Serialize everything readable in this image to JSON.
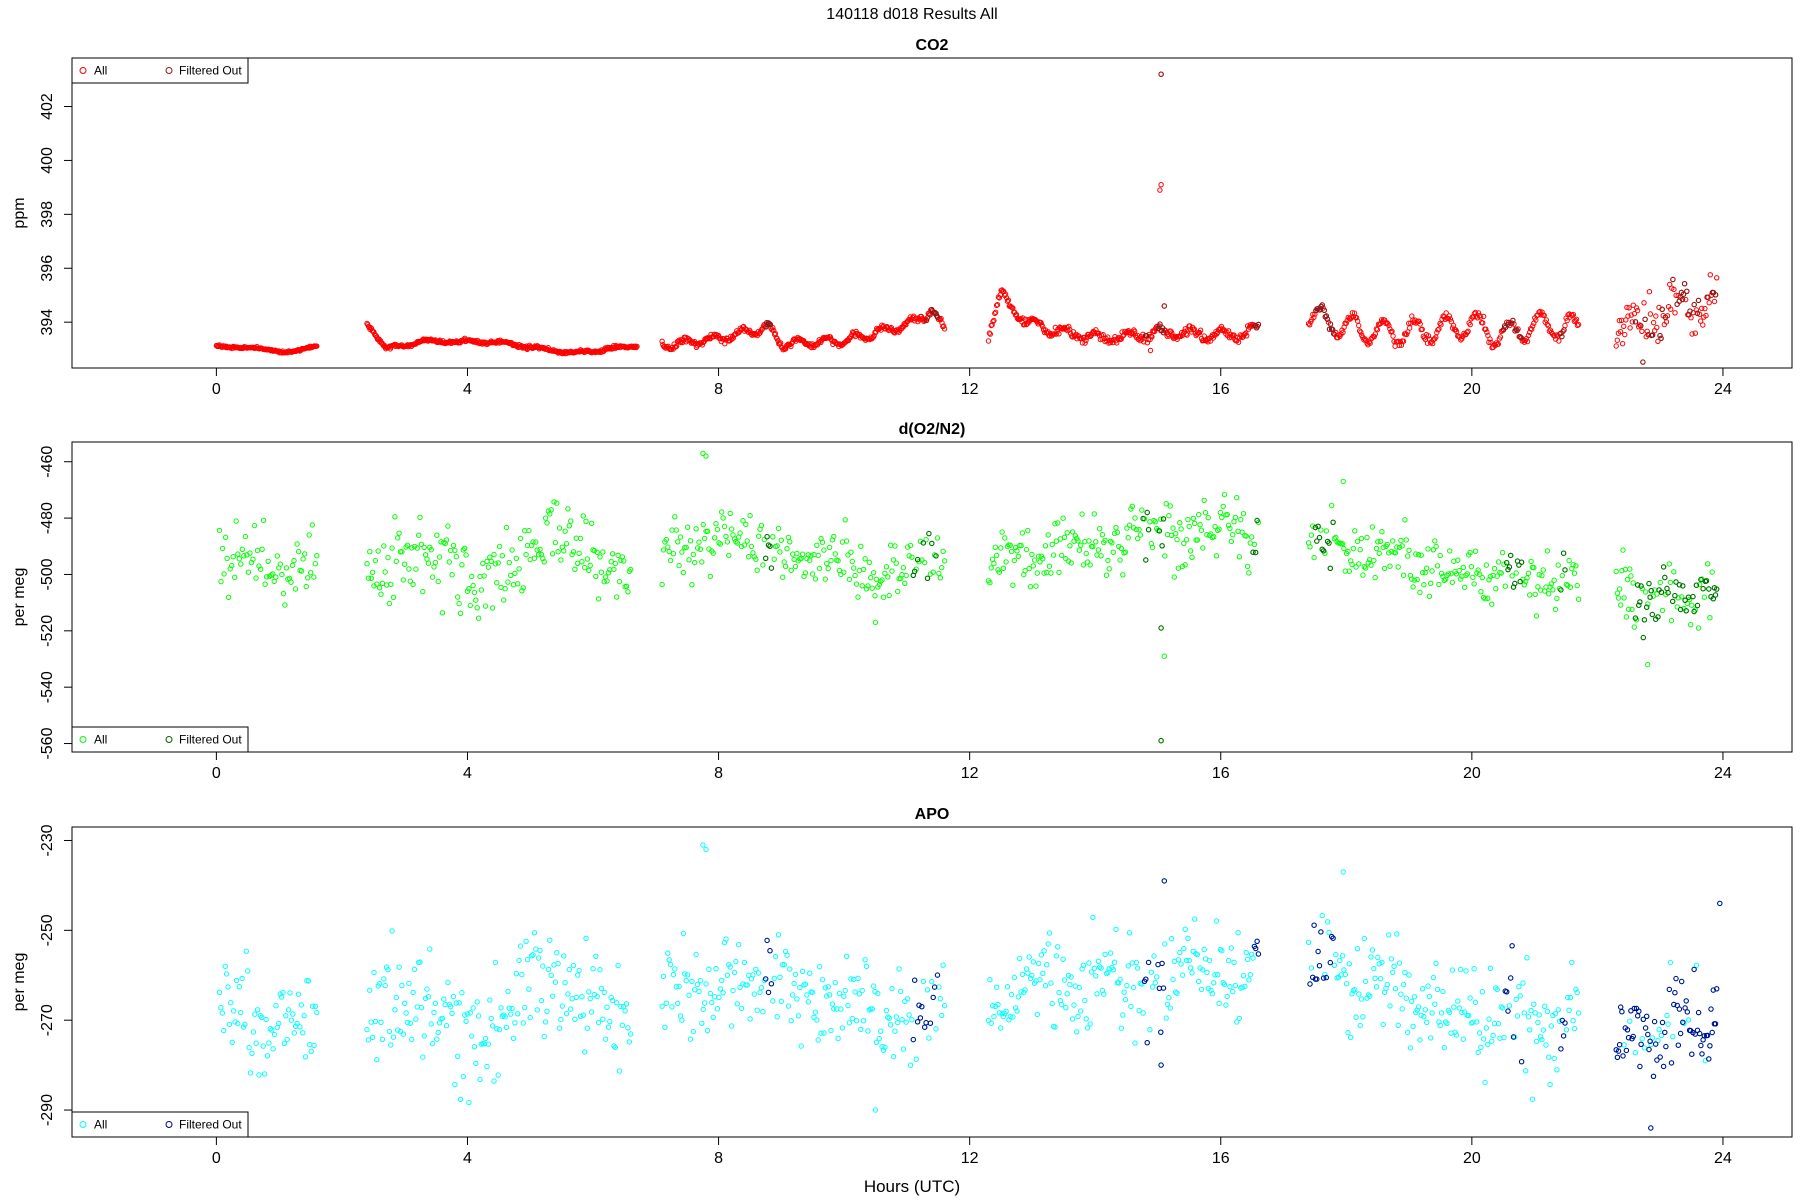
{
  "figure": {
    "title": "140118   d018   Results All",
    "xlabel": "Hours (UTC)"
  },
  "chart_data": [
    {
      "type": "scatter",
      "title": "CO2",
      "ylabel": "ppm",
      "xlim": [
        -2.3,
        25.1
      ],
      "ylim": [
        392.3,
        403.8
      ],
      "xticks": [
        0,
        4,
        8,
        12,
        16,
        20,
        24
      ],
      "yticks": [
        394,
        396,
        398,
        400,
        402
      ],
      "legend_position": "top-left",
      "legend": [
        "All",
        "Filtered Out"
      ],
      "colors": {
        "all": "#ff0000",
        "filtered": "#8b1a1a"
      },
      "segments": [
        {
          "x_start": 0.0,
          "x_end": 1.6,
          "n": 130,
          "base": 393.12,
          "osc_amp": 0.04,
          "osc_period": 1.0,
          "noise": 0.02,
          "knots": [
            [
              0.0,
              393.15
            ],
            [
              1.1,
              392.9
            ],
            [
              1.6,
              393.1
            ]
          ]
        },
        {
          "x_start": 2.4,
          "x_end": 6.7,
          "n": 360,
          "base": 393.2,
          "osc_amp": 0.05,
          "osc_period": 0.6,
          "noise": 0.03,
          "knots": [
            [
              2.4,
              394.0
            ],
            [
              2.7,
              393.0
            ],
            [
              3.3,
              393.3
            ],
            [
              4.5,
              393.25
            ],
            [
              5.7,
              392.85
            ],
            [
              6.7,
              393.15
            ]
          ]
        },
        {
          "x_start": 7.1,
          "x_end": 11.6,
          "n": 330,
          "base": 393.4,
          "osc_amp": 0.15,
          "osc_period": 0.45,
          "noise": 0.05,
          "knots": [
            [
              7.1,
              393.15
            ],
            [
              8.0,
              393.4
            ],
            [
              8.8,
              393.8
            ],
            [
              9.0,
              393.2
            ],
            [
              10.0,
              393.3
            ],
            [
              11.0,
              393.9
            ],
            [
              11.4,
              394.4
            ],
            [
              11.6,
              393.7
            ]
          ]
        },
        {
          "x_start": 12.3,
          "x_end": 16.6,
          "n": 300,
          "base": 393.6,
          "osc_amp": 0.18,
          "osc_period": 0.5,
          "noise": 0.08,
          "knots": [
            [
              12.3,
              393.6
            ],
            [
              12.5,
              395.0
            ],
            [
              12.9,
              394.0
            ],
            [
              13.5,
              393.6
            ],
            [
              14.2,
              393.4
            ],
            [
              15.0,
              393.6
            ],
            [
              16.0,
              393.5
            ],
            [
              16.6,
              393.7
            ]
          ]
        },
        {
          "x_start": 17.4,
          "x_end": 21.7,
          "n": 260,
          "base": 393.9,
          "osc_amp": 0.45,
          "osc_period": 0.5,
          "noise": 0.08,
          "knots": [
            [
              17.4,
              394.2
            ],
            [
              18.2,
              393.7
            ],
            [
              19.0,
              393.6
            ],
            [
              20.0,
              393.9
            ],
            [
              20.5,
              393.5
            ],
            [
              21.0,
              393.9
            ],
            [
              21.7,
              393.8
            ]
          ]
        },
        {
          "x_start": 22.3,
          "x_end": 23.9,
          "n": 95,
          "base": 394.5,
          "osc_amp": 0.4,
          "osc_period": 0.7,
          "noise": 0.45,
          "knots": [
            [
              22.3,
              393.5
            ],
            [
              23.0,
              394.2
            ],
            [
              23.5,
              395.0
            ],
            [
              23.9,
              394.8
            ]
          ]
        }
      ],
      "outliers": [
        {
          "x": 15.05,
          "y": 403.2
        },
        {
          "x": 15.05,
          "y": 399.1
        },
        {
          "x": 15.03,
          "y": 398.9
        },
        {
          "x": 15.1,
          "y": 394.6
        },
        {
          "x": 14.88,
          "y": 392.95
        }
      ],
      "filtered_ranges": [
        [
          8.75,
          8.85
        ],
        [
          11.3,
          11.5
        ],
        [
          14.75,
          14.85
        ],
        [
          15.0,
          15.1
        ],
        [
          16.5,
          16.6
        ],
        [
          17.5,
          17.8
        ],
        [
          20.5,
          20.8
        ],
        [
          21.4,
          21.5
        ],
        [
          22.6,
          23.95
        ]
      ],
      "filtered_prob": [
        0.9,
        0.7,
        0.8,
        0.8,
        0.8,
        0.7,
        0.7,
        0.6,
        0.35
      ]
    },
    {
      "type": "scatter",
      "title": "d(O2/N2)",
      "ylabel": "per meg",
      "xlim": [
        -2.3,
        25.1
      ],
      "ylim": [
        -563,
        -453
      ],
      "xticks": [
        0,
        4,
        8,
        12,
        16,
        20,
        24
      ],
      "yticks": [
        -560,
        -540,
        -520,
        -500,
        -480,
        -460
      ],
      "legend_position": "bottom-left",
      "legend": [
        "All",
        "Filtered Out"
      ],
      "colors": {
        "all": "#00ff00",
        "filtered": "#006400"
      },
      "segments": [
        {
          "x_start": 0.05,
          "x_end": 1.6,
          "n": 65,
          "base": -496,
          "osc_amp": 3,
          "osc_period": 1.2,
          "noise": 6
        },
        {
          "x_start": 2.4,
          "x_end": 6.6,
          "n": 190,
          "base": -494,
          "osc_amp": 5,
          "osc_period": 2.0,
          "noise": 7,
          "knots": [
            [
              2.4,
              -496
            ],
            [
              4.0,
              -499
            ],
            [
              5.5,
              -489
            ],
            [
              6.6,
              -494
            ]
          ]
        },
        {
          "x_start": 7.1,
          "x_end": 11.6,
          "n": 200,
          "base": -494,
          "osc_amp": 2,
          "osc_period": 1.5,
          "noise": 5,
          "knots": [
            [
              7.1,
              -492
            ],
            [
              8.0,
              -487
            ],
            [
              9.5,
              -494
            ],
            [
              10.5,
              -498
            ],
            [
              11.6,
              -496
            ]
          ]
        },
        {
          "x_start": 12.3,
          "x_end": 16.6,
          "n": 200,
          "base": -490,
          "osc_amp": 3,
          "osc_period": 1.2,
          "noise": 5.5,
          "knots": [
            [
              12.3,
              -496
            ],
            [
              14.0,
              -490
            ],
            [
              15.5,
              -485
            ],
            [
              16.6,
              -487
            ]
          ]
        },
        {
          "x_start": 17.4,
          "x_end": 21.7,
          "n": 200,
          "base": -495,
          "osc_amp": 2,
          "osc_period": 1.0,
          "noise": 5,
          "knots": [
            [
              17.4,
              -488
            ],
            [
              18.5,
              -493
            ],
            [
              19.5,
              -497
            ],
            [
              20.5,
              -500
            ],
            [
              21.7,
              -501
            ]
          ]
        },
        {
          "x_start": 22.3,
          "x_end": 23.9,
          "n": 90,
          "base": -507,
          "osc_amp": 3,
          "osc_period": 0.8,
          "noise": 5.5
        }
      ],
      "outliers": [
        {
          "x": 7.75,
          "y": -457
        },
        {
          "x": 7.8,
          "y": -458
        },
        {
          "x": 15.05,
          "y": -519
        },
        {
          "x": 15.1,
          "y": -529
        },
        {
          "x": 15.05,
          "y": -559
        },
        {
          "x": 22.8,
          "y": -532
        },
        {
          "x": 17.95,
          "y": -467
        },
        {
          "x": 10.5,
          "y": -517
        }
      ],
      "filtered_ranges": [
        [
          8.75,
          8.85
        ],
        [
          11.1,
          11.5
        ],
        [
          14.75,
          14.85
        ],
        [
          15.0,
          15.1
        ],
        [
          16.5,
          16.6
        ],
        [
          17.5,
          17.8
        ],
        [
          20.5,
          20.8
        ],
        [
          21.4,
          21.5
        ],
        [
          22.6,
          23.95
        ]
      ],
      "filtered_prob": [
        0.9,
        0.6,
        0.8,
        0.8,
        0.8,
        0.7,
        0.6,
        0.6,
        0.55
      ]
    },
    {
      "type": "scatter",
      "title": "APO",
      "ylabel": "per meg",
      "xlim": [
        -2.3,
        25.1
      ],
      "ylim": [
        -296,
        -227
      ],
      "xticks": [
        0,
        4,
        8,
        12,
        16,
        20,
        24
      ],
      "yticks": [
        -290,
        -270,
        -250,
        -230
      ],
      "legend_position": "bottom-left",
      "legend": [
        "All",
        "Filtered Out"
      ],
      "colors": {
        "all": "#00ffff",
        "filtered": "#00008b"
      },
      "segments": [
        {
          "x_start": 0.05,
          "x_end": 1.6,
          "n": 70,
          "base": -270,
          "osc_amp": 2,
          "osc_period": 1.2,
          "noise": 5.5
        },
        {
          "x_start": 2.4,
          "x_end": 6.6,
          "n": 190,
          "base": -268,
          "osc_amp": 4,
          "osc_period": 2.0,
          "noise": 6.5,
          "knots": [
            [
              2.4,
              -268
            ],
            [
              4.0,
              -271
            ],
            [
              5.5,
              -264
            ],
            [
              6.6,
              -268
            ]
          ]
        },
        {
          "x_start": 7.1,
          "x_end": 11.6,
          "n": 200,
          "base": -266,
          "osc_amp": 2,
          "osc_period": 1.5,
          "noise": 5,
          "knots": [
            [
              7.1,
              -268
            ],
            [
              8.0,
              -261
            ],
            [
              9.5,
              -264
            ],
            [
              10.5,
              -268
            ],
            [
              11.6,
              -265
            ]
          ]
        },
        {
          "x_start": 12.3,
          "x_end": 16.6,
          "n": 200,
          "base": -261,
          "osc_amp": 3,
          "osc_period": 1.2,
          "noise": 5,
          "knots": [
            [
              12.3,
              -266
            ],
            [
              14.0,
              -262
            ],
            [
              15.5,
              -258
            ],
            [
              16.6,
              -259
            ]
          ]
        },
        {
          "x_start": 17.4,
          "x_end": 21.7,
          "n": 200,
          "base": -266,
          "osc_amp": 2,
          "osc_period": 1.0,
          "noise": 5.5,
          "knots": [
            [
              17.4,
              -258
            ],
            [
              18.5,
              -263
            ],
            [
              19.5,
              -266
            ],
            [
              20.5,
              -270
            ],
            [
              21.7,
              -270
            ]
          ]
        },
        {
          "x_start": 22.3,
          "x_end": 23.9,
          "n": 90,
          "base": -272,
          "osc_amp": 3,
          "osc_period": 0.8,
          "noise": 4.5,
          "knots": [
            [
              22.3,
              -277
            ],
            [
              23.2,
              -270
            ],
            [
              23.9,
              -272
            ]
          ]
        }
      ],
      "outliers": [
        {
          "x": 7.75,
          "y": -231
        },
        {
          "x": 7.8,
          "y": -232
        },
        {
          "x": 15.05,
          "y": -280
        },
        {
          "x": 15.1,
          "y": -239
        },
        {
          "x": 17.95,
          "y": -237
        },
        {
          "x": 10.5,
          "y": -290
        },
        {
          "x": 22.85,
          "y": -294
        },
        {
          "x": 23.95,
          "y": -244
        }
      ],
      "filtered_ranges": [
        [
          8.75,
          8.85
        ],
        [
          11.1,
          11.5
        ],
        [
          14.75,
          14.85
        ],
        [
          15.0,
          15.1
        ],
        [
          16.5,
          16.6
        ],
        [
          17.4,
          17.8
        ],
        [
          20.5,
          20.8
        ],
        [
          21.4,
          21.5
        ],
        [
          22.3,
          23.95
        ]
      ],
      "filtered_prob": [
        0.9,
        0.6,
        0.8,
        0.8,
        0.8,
        0.7,
        0.6,
        0.6,
        0.8
      ]
    }
  ]
}
